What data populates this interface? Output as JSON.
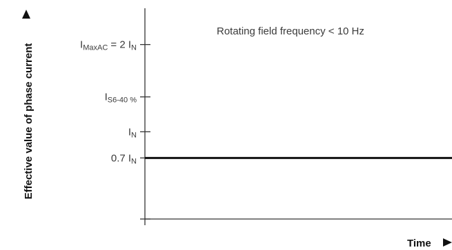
{
  "chart_data": {
    "type": "line",
    "title": "",
    "xlabel": "Time",
    "ylabel": "Effective value of phase current",
    "annotation": "Rotating field frequency < 10 Hz",
    "y_ticks": [
      {
        "base": "I",
        "sub": "MaxAC",
        "suffix": " = 2 I",
        "suffix_sub": "N",
        "value": 2.0
      },
      {
        "base": "I",
        "sub": "S6-40 %",
        "suffix": "",
        "suffix_sub": "",
        "value": 1.4
      },
      {
        "base": "I",
        "sub": "N",
        "suffix": "",
        "suffix_sub": "",
        "value": 1.0
      },
      {
        "base": "0.7 I",
        "sub": "N",
        "suffix": "",
        "suffix_sub": "",
        "value": 0.7
      }
    ],
    "series": [
      {
        "values": [
          0.7,
          0.7
        ]
      }
    ],
    "x": [
      0,
      1
    ],
    "ylim": [
      0,
      2.4
    ],
    "grid": false,
    "colors": {
      "axis": "#333333",
      "line": "#111111",
      "text": "#3a3a3a"
    }
  }
}
